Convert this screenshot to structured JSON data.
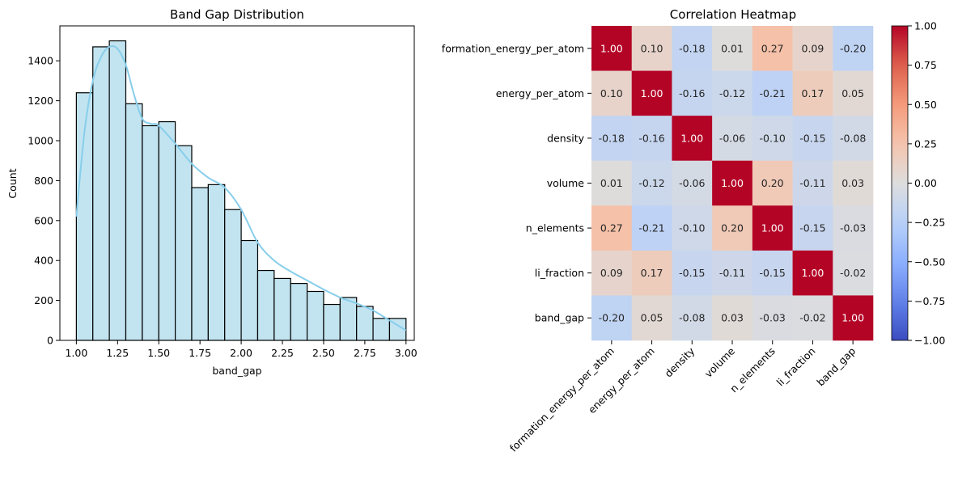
{
  "chart_data": [
    {
      "type": "bar",
      "title": "Band Gap Distribution",
      "xlabel": "band_gap",
      "ylabel": "Count",
      "xlim": [
        0.9,
        3.05
      ],
      "ylim": [
        0,
        1575
      ],
      "xticks": [
        1.0,
        1.25,
        1.5,
        1.75,
        2.0,
        2.25,
        2.5,
        2.75,
        3.0
      ],
      "xtick_labels": [
        "1.00",
        "1.25",
        "1.50",
        "1.75",
        "2.00",
        "2.25",
        "2.50",
        "2.75",
        "3.00"
      ],
      "yticks": [
        0,
        200,
        400,
        600,
        800,
        1000,
        1200,
        1400
      ],
      "ytick_labels": [
        "0",
        "200",
        "400",
        "600",
        "800",
        "1000",
        "1200",
        "1400"
      ],
      "bin_edges": [
        1.0,
        1.1,
        1.2,
        1.3,
        1.4,
        1.5,
        1.6,
        1.7,
        1.8,
        1.9,
        2.0,
        2.1,
        2.2,
        2.3,
        2.4,
        2.5,
        2.6,
        2.7,
        2.8,
        2.9,
        3.0
      ],
      "values": [
        1240,
        1470,
        1500,
        1185,
        1075,
        1095,
        975,
        765,
        780,
        655,
        500,
        350,
        310,
        285,
        245,
        180,
        215,
        170,
        110,
        110
      ],
      "kde": {
        "x": [
          1.0,
          1.05,
          1.1,
          1.15,
          1.2,
          1.25,
          1.3,
          1.35,
          1.4,
          1.45,
          1.5,
          1.6,
          1.7,
          1.8,
          1.9,
          2.0,
          2.1,
          2.2,
          2.3,
          2.4,
          2.5,
          2.6,
          2.7,
          2.8,
          2.9,
          3.0
        ],
        "y": [
          620,
          1050,
          1300,
          1420,
          1470,
          1460,
          1380,
          1230,
          1110,
          1085,
          1075,
          985,
          885,
          815,
          765,
          655,
          490,
          400,
          345,
          300,
          255,
          215,
          185,
          150,
          100,
          50
        ]
      },
      "colors": {
        "bar_fill": "#c2e4f0",
        "bar_edge": "#000000",
        "kde": "#87ceeb"
      }
    },
    {
      "type": "heatmap",
      "title": "Correlation Heatmap",
      "labels": [
        "formation_energy_per_atom",
        "energy_per_atom",
        "density",
        "volume",
        "n_elements",
        "li_fraction",
        "band_gap"
      ],
      "matrix": [
        [
          1.0,
          0.1,
          -0.18,
          0.01,
          0.27,
          0.09,
          -0.2
        ],
        [
          0.1,
          1.0,
          -0.16,
          -0.12,
          -0.21,
          0.17,
          0.05
        ],
        [
          -0.18,
          -0.16,
          1.0,
          -0.06,
          -0.1,
          -0.15,
          -0.08
        ],
        [
          0.01,
          -0.12,
          -0.06,
          1.0,
          0.2,
          -0.11,
          0.03
        ],
        [
          0.27,
          -0.21,
          -0.1,
          0.2,
          1.0,
          -0.15,
          -0.03
        ],
        [
          0.09,
          0.17,
          -0.15,
          -0.11,
          -0.15,
          1.0,
          -0.02
        ],
        [
          -0.2,
          0.05,
          -0.08,
          0.03,
          -0.03,
          -0.02,
          1.0
        ]
      ],
      "value_format": "0.00",
      "colormap": "coolwarm",
      "vmin": -1.0,
      "vmax": 1.0,
      "colorbar_ticks": [
        1.0,
        0.75,
        0.5,
        0.25,
        0.0,
        -0.25,
        -0.5,
        -0.75,
        -1.0
      ],
      "colorbar_tick_labels": [
        "1.00",
        "0.75",
        "0.50",
        "0.25",
        "0.00",
        "−0.25",
        "−0.50",
        "−0.75",
        "−1.00"
      ]
    }
  ]
}
